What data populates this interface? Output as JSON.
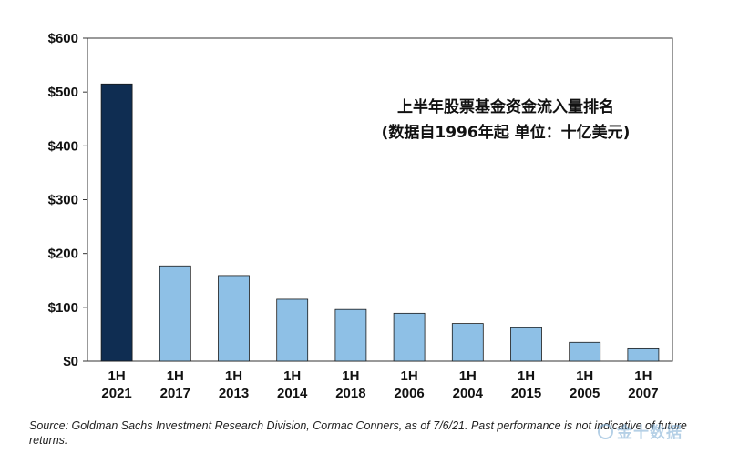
{
  "chart_data": {
    "type": "bar",
    "title_lines": [
      "上半年股票基金资金流入量排名",
      "(数据自1996年起 单位：十亿美元)"
    ],
    "categories": [
      [
        "1H",
        "2021"
      ],
      [
        "1H",
        "2017"
      ],
      [
        "1H",
        "2013"
      ],
      [
        "1H",
        "2014"
      ],
      [
        "1H",
        "2018"
      ],
      [
        "1H",
        "2006"
      ],
      [
        "1H",
        "2004"
      ],
      [
        "1H",
        "2015"
      ],
      [
        "1H",
        "2005"
      ],
      [
        "1H",
        "2007"
      ]
    ],
    "values": [
      515,
      177,
      159,
      115,
      96,
      89,
      70,
      62,
      35,
      23
    ],
    "ylim": [
      0,
      600
    ],
    "yticks": [
      0,
      100,
      200,
      300,
      400,
      500,
      600
    ],
    "ytick_labels": [
      "$0",
      "$100",
      "$200",
      "$300",
      "$400",
      "$500",
      "$600"
    ],
    "highlight_index": 0,
    "colors": {
      "highlight": "#0f2d52",
      "default": "#8ec0e6",
      "bar_edge": "#1a1a1a",
      "axis": "#333333"
    },
    "grid": false,
    "legend": "none"
  },
  "source": "Source: Goldman Sachs Investment Research Division, Cormac Conners, as of 7/6/21. Past performance is not indicative of future returns.",
  "watermark": "金十数据"
}
